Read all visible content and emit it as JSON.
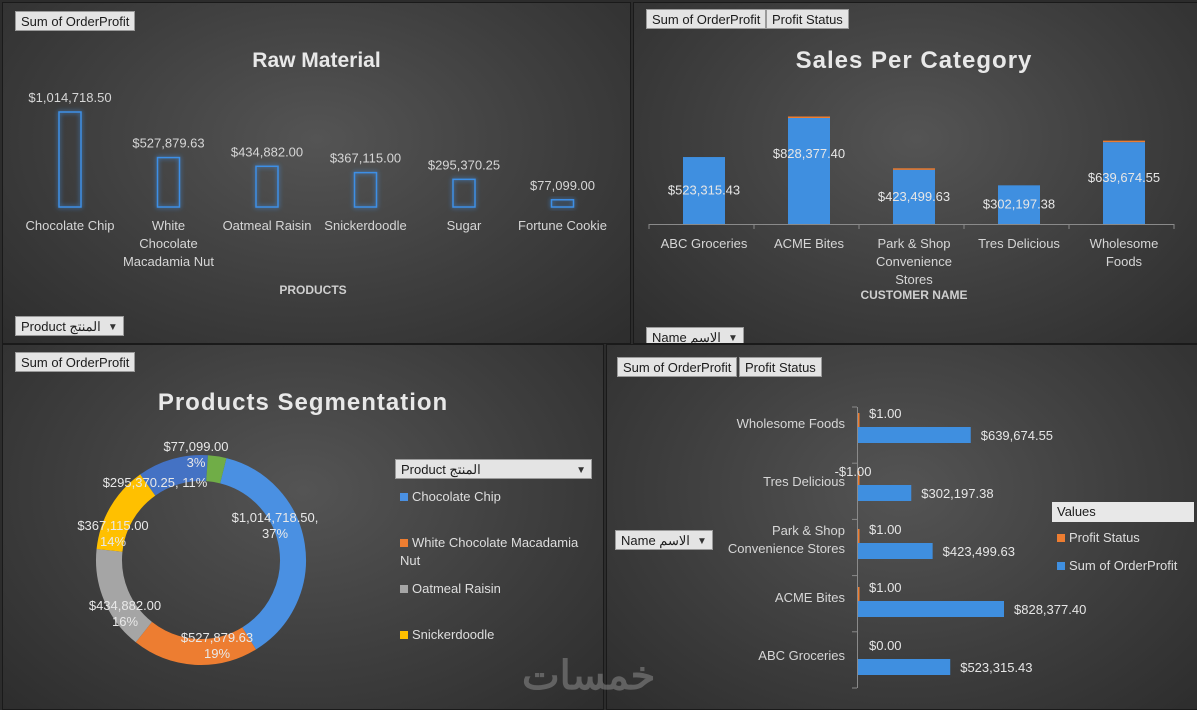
{
  "raw_material": {
    "field_button": "Sum of OrderProfit",
    "axis_filter": "Product المنتج",
    "chart_data": {
      "type": "bar",
      "title": "Raw Material",
      "xlabel": "PRODUCTS",
      "categories": [
        "Chocolate Chip",
        "White Chocolate Macadamia Nut",
        "Oatmeal Raisin",
        "Snickerdoodle",
        "Sugar",
        "Fortune Cookie"
      ],
      "category_lines": [
        [
          "Chocolate Chip"
        ],
        [
          "White",
          "Chocolate",
          "Macadamia Nut"
        ],
        [
          "Oatmeal Raisin"
        ],
        [
          "Snickerdoodle"
        ],
        [
          "Sugar"
        ],
        [
          "Fortune Cookie"
        ]
      ],
      "values": [
        1014718.5,
        527879.63,
        434882.0,
        367115.0,
        295370.25,
        77099.0
      ],
      "labels": [
        "$1,014,718.50",
        "$527,879.63",
        "$434,882.00",
        "$367,115.00",
        "$295,370.25",
        "$77,099.00"
      ],
      "ylim": [
        0,
        1100000
      ]
    }
  },
  "sales_per_category": {
    "field_buttons": [
      "Sum of OrderProfit",
      "Profit Status"
    ],
    "axis_filter": "Name الاسم",
    "chart_data": {
      "type": "bar",
      "title": "Sales Per Category",
      "xlabel": "CUSTOMER NAME",
      "categories": [
        "ABC Groceries",
        "ACME Bites",
        "Park & Shop Convenience Stores",
        "Tres Delicious",
        "Wholesome Foods"
      ],
      "category_lines": [
        [
          "ABC Groceries"
        ],
        [
          "ACME Bites"
        ],
        [
          "Park & Shop",
          "Convenience",
          "Stores"
        ],
        [
          "Tres Delicious"
        ],
        [
          "Wholesome",
          "Foods"
        ]
      ],
      "series": [
        {
          "name": "Sum of OrderProfit",
          "values": [
            523315.43,
            828377.4,
            423499.63,
            302197.38,
            639674.55
          ],
          "color": "#3f8fe0"
        },
        {
          "name": "Profit Status",
          "values": [
            0,
            1,
            1,
            -1,
            1
          ],
          "color": "#ed7d31"
        }
      ],
      "labels": [
        "$523,315.43",
        "$828,377.40",
        "$423,499.63",
        "$302,197.38",
        "$639,674.55"
      ],
      "ylim": [
        0,
        900000
      ]
    }
  },
  "segmentation": {
    "field_button": "Sum of OrderProfit",
    "legend_filter": "Product المنتج",
    "chart_data": {
      "type": "pie",
      "title": "Products Segmentation",
      "categories": [
        "Chocolate Chip",
        "White Chocolate Macadamia Nut",
        "Oatmeal Raisin",
        "Snickerdoodle",
        "Sugar",
        "Fortune Cookie"
      ],
      "values": [
        1014718.5,
        527879.63,
        434882.0,
        367115.0,
        295370.25,
        77099.0
      ],
      "colors": [
        "#4a90e2",
        "#ed7d31",
        "#a5a5a5",
        "#ffc000",
        "#4472c4",
        "#70ad47"
      ],
      "labels": [
        "$1,014,718.50, 37%",
        "$527,879.63 19%",
        "$434,882.00 16%",
        "$367,115.00 14%",
        "$295,370.25, 11%",
        "$77,099.00 3%"
      ],
      "label_lines": [
        [
          "$1,014,718.50,",
          "37%"
        ],
        [
          "$527,879.63",
          "19%"
        ],
        [
          "$434,882.00",
          "16%"
        ],
        [
          "$367,115.00",
          "14%"
        ],
        [
          "$295,370.25, 11%"
        ],
        [
          "$77,099.00",
          "3%"
        ]
      ],
      "legend_items": [
        "Chocolate Chip",
        "White Chocolate Macadamia Nut",
        "Oatmeal Raisin",
        "Snickerdoodle"
      ]
    }
  },
  "customer_bars": {
    "field_buttons": [
      "Sum of OrderProfit",
      "Profit Status"
    ],
    "axis_filter": "Name الاسم",
    "legend_title": "Values",
    "legend_items": [
      "Profit Status",
      "Sum of OrderProfit"
    ],
    "chart_data": {
      "type": "bar",
      "orientation": "horizontal",
      "categories": [
        "Wholesome Foods",
        "Tres Delicious",
        "Park & Shop Convenience Stores",
        "ACME Bites",
        "ABC Groceries"
      ],
      "category_lines": [
        [
          "Wholesome Foods"
        ],
        [
          "Tres Delicious"
        ],
        [
          "Park & Shop",
          "Convenience Stores"
        ],
        [
          "ACME Bites"
        ],
        [
          "ABC Groceries"
        ]
      ],
      "series": [
        {
          "name": "Profit Status",
          "values": [
            1,
            -1,
            1,
            1,
            0
          ],
          "labels": [
            "$1.00",
            "-$1.00",
            "$1.00",
            "$1.00",
            "$0.00"
          ],
          "color": "#ed7d31"
        },
        {
          "name": "Sum of OrderProfit",
          "values": [
            639674.55,
            302197.38,
            423499.63,
            828377.4,
            523315.43
          ],
          "labels": [
            "$639,674.55",
            "$302,197.38",
            "$423,499.63",
            "$828,377.40",
            "$523,315.43"
          ],
          "color": "#3f8fe0"
        }
      ],
      "xlim": [
        0,
        950000
      ]
    }
  },
  "watermark": "خمسات"
}
